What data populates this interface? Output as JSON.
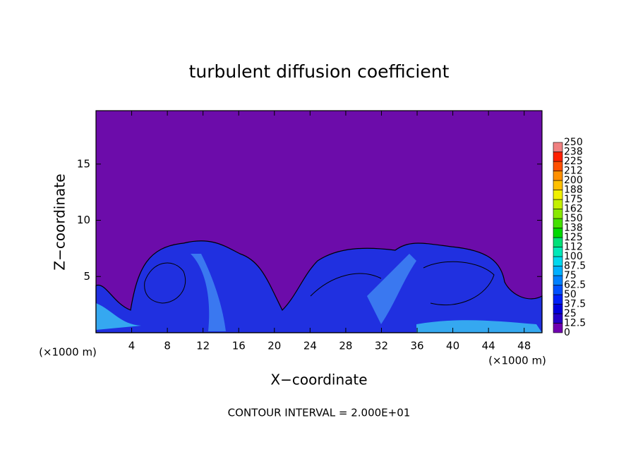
{
  "chart_data": {
    "type": "contour",
    "title": "turbulent diffusion coefficient",
    "xlabel": "X−coordinate",
    "ylabel": "Z−coordinate",
    "xunit": "(×1000 m)",
    "yunit": "(×1000 m)",
    "annotation": "CONTOUR INTERVAL = 2.000E+01",
    "xlim": [
      0,
      50
    ],
    "xticks": [
      4,
      8,
      12,
      16,
      20,
      24,
      28,
      32,
      36,
      40,
      44,
      48
    ],
    "ylim": [
      0,
      19.75
    ],
    "yticks": [
      5,
      10,
      15
    ],
    "colorbar": {
      "levels": [
        0,
        12.5,
        25,
        37.5,
        50,
        62.5,
        75,
        87.5,
        100,
        {
          "value": 112.5,
          "label": "112"
        },
        125,
        {
          "value": 137.5,
          "label": "138"
        },
        150,
        {
          "value": 162.5,
          "label": "162"
        },
        175,
        {
          "value": 187.5,
          "label": "188"
        },
        200,
        {
          "value": 212.5,
          "label": "212"
        },
        225,
        {
          "value": 237.5,
          "label": "238"
        },
        250
      ],
      "colors": [
        "#7000b0",
        "#2400c8",
        "#0000dc",
        "#0020f8",
        "#0050ff",
        "#0080ff",
        "#00b0ff",
        "#00d8ee",
        "#00e8b8",
        "#00e078",
        "#00d800",
        "#44e000",
        "#88e800",
        "#c4f000",
        "#f0f000",
        "#ffc000",
        "#ff9000",
        "#ff5000",
        "#ff2000",
        "#f08080"
      ]
    }
  }
}
